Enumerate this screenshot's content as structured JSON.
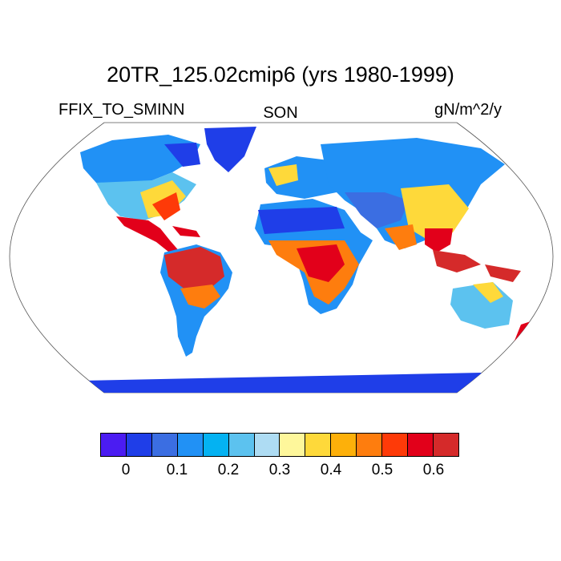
{
  "title": "20TR_125.02cmip6 (yrs 1980-1999)",
  "left_label": "FFIX_TO_SMINN",
  "center_label": "SON",
  "right_label": "gN/m^2/y",
  "colorbar": {
    "colors": [
      "#4b1cf2",
      "#1f3ee8",
      "#3b6ee2",
      "#2191f5",
      "#04b2f2",
      "#5cc2ef",
      "#aedcf3",
      "#fef79b",
      "#fed93a",
      "#fdb00a",
      "#fe7d0e",
      "#fe3a08",
      "#e2001a",
      "#d52a2a"
    ],
    "labels": [
      "0",
      "0.1",
      "0.2",
      "0.3",
      "0.4",
      "0.5",
      "0.6"
    ]
  }
}
